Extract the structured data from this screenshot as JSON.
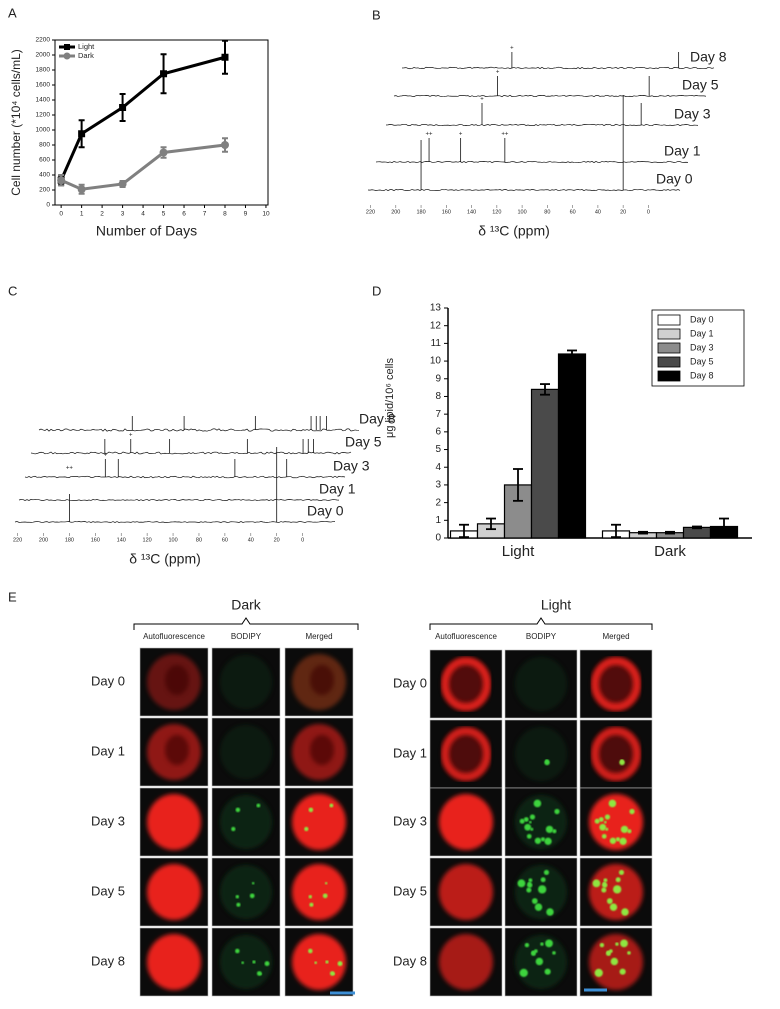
{
  "chart_data": [
    {
      "panel": "A",
      "type": "line",
      "x": [
        0,
        1,
        3,
        5,
        8
      ],
      "series": [
        {
          "name": "Light",
          "color": "#000000",
          "marker": "square",
          "values": [
            330,
            950,
            1300,
            1750,
            1970
          ],
          "errors": [
            60,
            180,
            180,
            260,
            220
          ]
        },
        {
          "name": "Dark",
          "color": "#808080",
          "marker": "circle",
          "values": [
            330,
            210,
            280,
            700,
            800
          ],
          "errors": [
            70,
            60,
            40,
            70,
            90
          ]
        }
      ],
      "x_label": "Number of Days",
      "y_label": "Cell number (*10⁴ cells/mL)",
      "xlim": [
        -0.3,
        10.1
      ],
      "xticks": [
        0,
        1,
        2,
        3,
        4,
        5,
        6,
        7,
        8,
        9,
        10
      ],
      "ylim": [
        0,
        2200
      ],
      "yticks": [
        0,
        200,
        400,
        600,
        800,
        1000,
        1200,
        1400,
        1600,
        1800,
        2000,
        2200
      ],
      "legend": "upper-left"
    },
    {
      "panel": "B",
      "type": "spectra",
      "x_label": "δ ¹³C (ppm)",
      "xlim": [
        222,
        -25
      ],
      "xticks": [
        220,
        200,
        180,
        160,
        140,
        120,
        100,
        80,
        60,
        40,
        20,
        0
      ],
      "series": [
        {
          "name": "Day 0",
          "peaks": [
            180,
            20
          ]
        },
        {
          "name": "Day 1",
          "peaks": [
            180,
            155,
            120
          ]
        },
        {
          "name": "Day 3",
          "peaks": [
            146,
            20
          ]
        },
        {
          "name": "Day 5",
          "peaks": [
            140,
            20
          ]
        },
        {
          "name": "Day 8",
          "peaks": [
            135,
            3
          ]
        }
      ],
      "annotations": [
        {
          "text": "++",
          "series": 1,
          "x": 180
        },
        {
          "text": "+",
          "series": 1,
          "x": 155
        },
        {
          "text": "++",
          "series": 1,
          "x": 120
        },
        {
          "text": "+",
          "series": 2,
          "x": 146
        },
        {
          "text": "+",
          "series": 3,
          "x": 140
        },
        {
          "text": "+",
          "series": 4,
          "x": 135
        }
      ]
    },
    {
      "panel": "C",
      "type": "spectra",
      "x_label": "δ ¹³C (ppm)",
      "xlim": [
        222,
        -25
      ],
      "xticks": [
        220,
        200,
        180,
        160,
        140,
        120,
        100,
        80,
        60,
        40,
        20,
        0
      ],
      "series": [
        {
          "name": "Day 0",
          "peaks": [
            180,
            20
          ]
        },
        {
          "name": "Day 1",
          "peaks": []
        },
        {
          "name": "Day 3",
          "peaks": [
            160,
            150,
            60,
            20
          ]
        },
        {
          "name": "Day 5",
          "peaks": [
            165,
            145,
            115,
            55,
            12,
            8,
            4
          ]
        },
        {
          "name": "Day 8",
          "peaks": [
            150,
            110,
            55,
            12,
            8,
            5,
            0
          ]
        }
      ],
      "annotations": [
        {
          "text": "++",
          "series": 0,
          "x": 180
        },
        {
          "text": "+",
          "series": 2,
          "x": 160
        },
        {
          "text": "+",
          "series": 3,
          "x": 145
        }
      ]
    },
    {
      "panel": "D",
      "type": "bar",
      "categories": [
        "Light",
        "Dark"
      ],
      "series": [
        {
          "name": "Day 0",
          "color": "#ffffff",
          "values": [
            0.4,
            0.4
          ],
          "errors": [
            0.35,
            0.35
          ]
        },
        {
          "name": "Day 1",
          "color": "#d0d0d0",
          "values": [
            0.8,
            0.3
          ],
          "errors": [
            0.3,
            0.05
          ]
        },
        {
          "name": "Day 3",
          "color": "#8c8c8c",
          "values": [
            3.0,
            0.3
          ],
          "errors": [
            0.9,
            0.05
          ]
        },
        {
          "name": "Day 5",
          "color": "#4a4a4a",
          "values": [
            8.4,
            0.6
          ],
          "errors": [
            0.3,
            0.05
          ]
        },
        {
          "name": "Day 8",
          "color": "#000000",
          "values": [
            10.4,
            0.65
          ],
          "errors": [
            0.2,
            0.45
          ]
        }
      ],
      "y_label": "μg lipid/10⁶ cells",
      "ylim": [
        0,
        13
      ],
      "yticks": [
        0,
        1,
        2,
        3,
        4,
        5,
        6,
        7,
        8,
        9,
        10,
        11,
        12,
        13
      ],
      "legend": "upper-right"
    }
  ],
  "microscopy": {
    "panel": "E",
    "groups": [
      {
        "title": "Dark",
        "columns": [
          "Autofluorescence",
          "BODIPY",
          "Merged"
        ],
        "rows": [
          "Day 0",
          "Day 1",
          "Day 3",
          "Day 5",
          "Day 8"
        ]
      },
      {
        "title": "Light",
        "columns": [
          "Autofluorescence",
          "BODIPY",
          "Merged"
        ],
        "rows": [
          "Day 0",
          "Day 1",
          "Day 3",
          "Day 5",
          "Day 8"
        ]
      }
    ]
  }
}
